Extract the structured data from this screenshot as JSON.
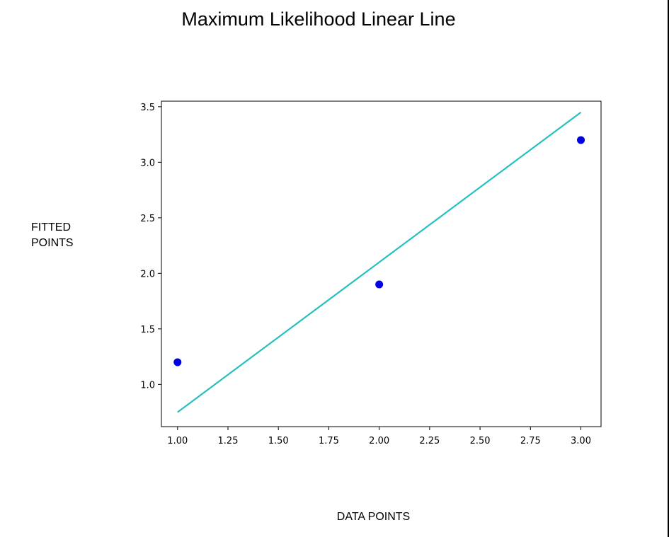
{
  "chart_data": {
    "type": "scatter",
    "title": "Maximum Likelihood Linear Line",
    "xlabel": "DATA POINTS",
    "ylabel_lines": [
      "FITTED",
      "POINTS"
    ],
    "xlim": [
      0.92,
      3.1
    ],
    "ylim": [
      0.62,
      3.55
    ],
    "xticks": [
      1.0,
      1.25,
      1.5,
      1.75,
      2.0,
      2.25,
      2.5,
      2.75,
      3.0
    ],
    "xtick_labels": [
      "1.00",
      "1.25",
      "1.50",
      "1.75",
      "2.00",
      "2.25",
      "2.50",
      "2.75",
      "3.00"
    ],
    "yticks": [
      1.0,
      1.5,
      2.0,
      2.5,
      3.0,
      3.5
    ],
    "ytick_labels": [
      "1.0",
      "1.5",
      "2.0",
      "2.5",
      "3.0",
      "3.5"
    ],
    "grid": false,
    "series": [
      {
        "kind": "scatter",
        "color": "#0000e6",
        "points": [
          {
            "x": 1.0,
            "y": 1.2
          },
          {
            "x": 2.0,
            "y": 1.9
          },
          {
            "x": 3.0,
            "y": 3.2
          }
        ]
      },
      {
        "kind": "line",
        "color": "#26c0c0",
        "points": [
          {
            "x": 1.0,
            "y": 0.75
          },
          {
            "x": 3.0,
            "y": 3.45
          }
        ]
      }
    ]
  }
}
